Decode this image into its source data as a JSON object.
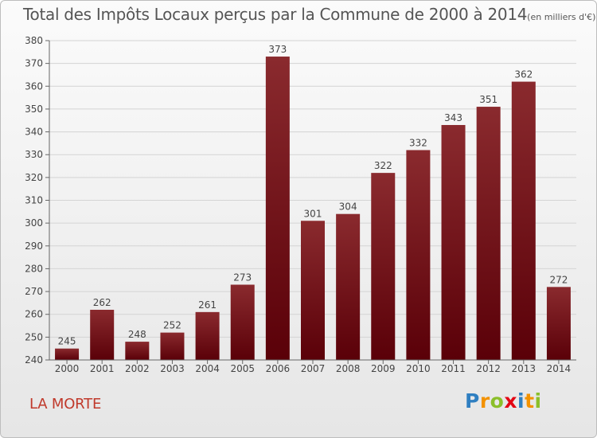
{
  "chart_data": {
    "type": "bar",
    "title": "Total des Impôts Locaux perçus par la Commune de 2000 à 2014",
    "unit": "(en milliers d'€)",
    "categories": [
      "2000",
      "2001",
      "2002",
      "2003",
      "2004",
      "2005",
      "2006",
      "2007",
      "2008",
      "2009",
      "2010",
      "2011",
      "2012",
      "2013",
      "2014"
    ],
    "values": [
      245,
      262,
      248,
      252,
      261,
      273,
      373,
      301,
      304,
      322,
      332,
      343,
      351,
      362,
      272
    ],
    "yticks": [
      240,
      250,
      260,
      270,
      280,
      290,
      300,
      310,
      320,
      330,
      340,
      350,
      360,
      370,
      380
    ],
    "ylim": [
      240,
      380
    ],
    "xlabel": "",
    "ylabel": "",
    "grid": true
  },
  "commune": "LA MORTE",
  "logo": {
    "letters": [
      "P",
      "r",
      "o",
      "x",
      "i",
      "t",
      "i"
    ],
    "colors": [
      "#2f7fc1",
      "#f39200",
      "#8bbf2a",
      "#e30613",
      "#2f7fc1",
      "#f39200",
      "#8bbf2a"
    ]
  },
  "colors": {
    "bar_top": "#8a2a2e",
    "bar_bottom": "#5a0008",
    "grid": "#d4d4d4",
    "axis": "#666666",
    "text": "#444444"
  }
}
